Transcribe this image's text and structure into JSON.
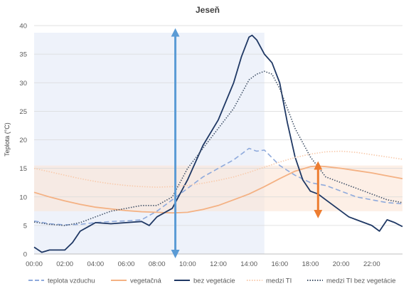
{
  "chart_data": {
    "type": "line",
    "title": "Jeseň",
    "ylabel": "Teplota (°C)",
    "xlabel": "",
    "ylim": [
      0,
      40
    ],
    "yticks": [
      0,
      5,
      10,
      15,
      20,
      25,
      30,
      35,
      40
    ],
    "xlim": [
      0,
      24
    ],
    "xtick_labels": [
      "00:00",
      "02:00",
      "04:00",
      "06:00",
      "08:00",
      "10:00",
      "12:00",
      "14:00",
      "16:00",
      "18:00",
      "20:00",
      "22:00"
    ],
    "grid": "horizontal",
    "legend_position": "bottom",
    "shaded_regions": [
      {
        "orientation": "vertical",
        "from": 0,
        "to": 15,
        "color": "#e8eef8"
      },
      {
        "orientation": "horizontal",
        "from": 7.5,
        "to": 15.5,
        "color": "#fbe4d6"
      }
    ],
    "arrows": [
      {
        "x": 9.2,
        "from": 0,
        "to": 38.8,
        "color": "#5b9bd5"
      },
      {
        "x": 18.5,
        "from": 7,
        "to": 15.5,
        "color": "#ed7d31"
      }
    ],
    "series": [
      {
        "name": "teplota vzduchu",
        "color": "#8faadc",
        "style": "dashed",
        "x": [
          0,
          1,
          2,
          3,
          4,
          5,
          6,
          7,
          8,
          9,
          10,
          11,
          12,
          13,
          13.5,
          14,
          14.5,
          15,
          16,
          17,
          18,
          19,
          20,
          21,
          22,
          23,
          24
        ],
        "y": [
          5.8,
          5.3,
          5.1,
          5.2,
          5.5,
          5.7,
          5.8,
          6.0,
          7.5,
          9.5,
          11.5,
          13.5,
          15.0,
          16.5,
          17.5,
          18.5,
          18.0,
          18.2,
          15.5,
          13.8,
          12.5,
          12.0,
          11.0,
          10.0,
          9.5,
          9.0,
          8.8
        ]
      },
      {
        "name": "vegetačná",
        "color": "#f4b183",
        "style": "solid",
        "x": [
          0,
          1,
          2,
          3,
          4,
          5,
          6,
          7,
          8,
          9,
          10,
          11,
          12,
          13,
          14,
          15,
          16,
          17,
          18,
          18.5,
          19,
          20,
          21,
          22,
          23,
          24
        ],
        "y": [
          10.8,
          10.0,
          9.3,
          8.7,
          8.2,
          7.9,
          7.6,
          7.4,
          7.3,
          7.2,
          7.3,
          7.8,
          8.5,
          9.5,
          10.5,
          11.8,
          13.2,
          14.5,
          15.3,
          15.4,
          15.3,
          15.0,
          14.6,
          14.2,
          13.7,
          13.2
        ]
      },
      {
        "name": "bez vegetácie",
        "color": "#1f3864",
        "style": "solid",
        "x": [
          0,
          0.5,
          1,
          2,
          2.5,
          3,
          4,
          5,
          6,
          7,
          7.5,
          8,
          9,
          9.5,
          10,
          11,
          12,
          13,
          13.5,
          14,
          14.2,
          14.5,
          15,
          15.5,
          16,
          16.5,
          17,
          17.5,
          18,
          18.5,
          19,
          20,
          20.5,
          21,
          22,
          22.5,
          23,
          23.5,
          24
        ],
        "y": [
          1.2,
          0.3,
          0.7,
          0.7,
          2.0,
          4.0,
          5.5,
          5.3,
          5.5,
          5.7,
          5.0,
          6.5,
          8.0,
          10.5,
          13.0,
          19.0,
          23.5,
          30.0,
          34.5,
          38.0,
          38.3,
          37.5,
          35.0,
          33.5,
          30.0,
          23.0,
          17.0,
          13.0,
          11.0,
          10.5,
          9.5,
          7.5,
          6.5,
          6.0,
          5.0,
          4.0,
          6.0,
          5.5,
          4.8
        ]
      },
      {
        "name": "medzi TI",
        "color": "#f8cbad",
        "style": "dotted",
        "x": [
          0,
          1,
          2,
          3,
          4,
          5,
          6,
          7,
          8,
          9,
          10,
          11,
          12,
          13,
          14,
          15,
          16,
          17,
          18,
          19,
          20,
          21,
          22,
          23,
          24
        ],
        "y": [
          15.0,
          14.4,
          13.8,
          13.2,
          12.7,
          12.3,
          12.0,
          11.8,
          11.7,
          11.8,
          12.0,
          12.4,
          12.9,
          13.5,
          14.3,
          15.2,
          16.1,
          16.9,
          17.5,
          17.9,
          18.0,
          17.8,
          17.4,
          17.0,
          16.6
        ]
      },
      {
        "name": "medzi TI bez vegetácie",
        "color": "#44546a",
        "style": "dotted",
        "x": [
          0,
          1,
          2,
          3,
          4,
          5,
          6,
          7,
          8,
          9,
          10,
          11,
          12,
          13,
          14,
          14.5,
          15,
          15.5,
          16,
          17,
          18,
          19,
          20,
          21,
          22,
          23,
          24
        ],
        "y": [
          5.6,
          5.2,
          5.0,
          5.5,
          6.5,
          7.5,
          8.0,
          8.5,
          8.5,
          10.0,
          15.0,
          18.5,
          22.0,
          25.5,
          30.5,
          31.5,
          32.0,
          31.5,
          29.0,
          22.0,
          17.0,
          13.5,
          12.5,
          11.5,
          10.5,
          9.5,
          9.0
        ]
      }
    ]
  }
}
